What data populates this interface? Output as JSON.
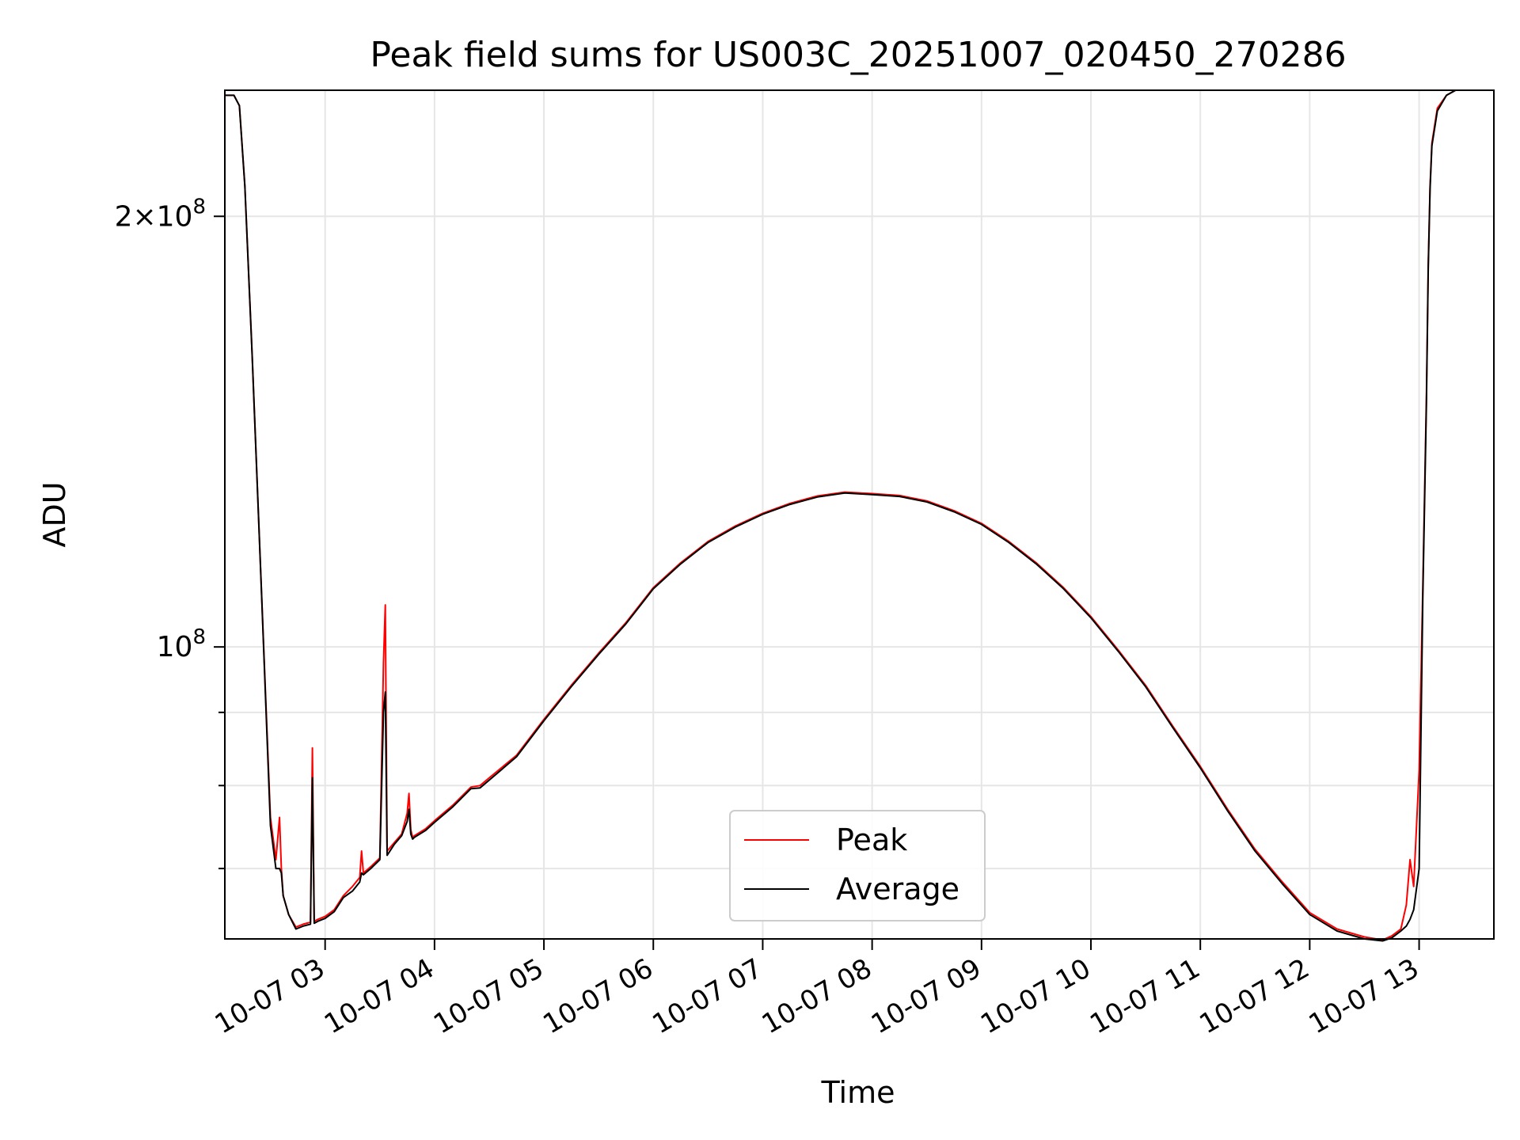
{
  "chart_data": {
    "type": "line",
    "title": "Peak field sums for US003C_20251007_020450_270286",
    "xlabel": "Time",
    "ylabel": "ADU",
    "y_scale": "log",
    "xlim": [
      "2025-10-07T02:05",
      "2025-10-07T13:41"
    ],
    "ylim": [
      62500000,
      245000000
    ],
    "grid": true,
    "legend_position": "lower-center",
    "x_tick_labels": [
      "10-07 03",
      "10-07 04",
      "10-07 05",
      "10-07 06",
      "10-07 07",
      "10-07 08",
      "10-07 09",
      "10-07 10",
      "10-07 11",
      "10-07 12",
      "10-07 13"
    ],
    "x_tick_values": [
      "2025-10-07T03:00",
      "2025-10-07T04:00",
      "2025-10-07T05:00",
      "2025-10-07T06:00",
      "2025-10-07T07:00",
      "2025-10-07T08:00",
      "2025-10-07T09:00",
      "2025-10-07T10:00",
      "2025-10-07T11:00",
      "2025-10-07T12:00",
      "2025-10-07T13:00"
    ],
    "y_major_ticks": [
      {
        "value": 200000000,
        "label_mantissa": "2",
        "label_exponent": "8"
      },
      {
        "value": 100000000,
        "label_mantissa": "",
        "label_exponent": "8"
      }
    ],
    "y_minor_tick_values": [
      70000000,
      80000000,
      90000000
    ],
    "series": [
      {
        "name": "Peak",
        "color": "#ff0000",
        "x": [
          "2025-10-07T02:05",
          "2025-10-07T02:10",
          "2025-10-07T02:13",
          "2025-10-07T02:16",
          "2025-10-07T02:20",
          "2025-10-07T02:25",
          "2025-10-07T02:30",
          "2025-10-07T02:33",
          "2025-10-07T02:35",
          "2025-10-07T02:36",
          "2025-10-07T02:37",
          "2025-10-07T02:40",
          "2025-10-07T02:44",
          "2025-10-07T02:48",
          "2025-10-07T02:52",
          "2025-10-07T02:53",
          "2025-10-07T02:54",
          "2025-10-07T02:56",
          "2025-10-07T03:00",
          "2025-10-07T03:05",
          "2025-10-07T03:10",
          "2025-10-07T03:15",
          "2025-10-07T03:19",
          "2025-10-07T03:20",
          "2025-10-07T03:21",
          "2025-10-07T03:25",
          "2025-10-07T03:30",
          "2025-10-07T03:32",
          "2025-10-07T03:33",
          "2025-10-07T03:34",
          "2025-10-07T03:38",
          "2025-10-07T03:42",
          "2025-10-07T03:45",
          "2025-10-07T03:46",
          "2025-10-07T03:47",
          "2025-10-07T03:48",
          "2025-10-07T03:49",
          "2025-10-07T03:55",
          "2025-10-07T04:00",
          "2025-10-07T04:10",
          "2025-10-07T04:20",
          "2025-10-07T04:25",
          "2025-10-07T04:30",
          "2025-10-07T04:45",
          "2025-10-07T05:00",
          "2025-10-07T05:15",
          "2025-10-07T05:30",
          "2025-10-07T05:45",
          "2025-10-07T06:00",
          "2025-10-07T06:15",
          "2025-10-07T06:30",
          "2025-10-07T06:45",
          "2025-10-07T07:00",
          "2025-10-07T07:15",
          "2025-10-07T07:30",
          "2025-10-07T07:45",
          "2025-10-07T08:00",
          "2025-10-07T08:15",
          "2025-10-07T08:30",
          "2025-10-07T08:45",
          "2025-10-07T09:00",
          "2025-10-07T09:15",
          "2025-10-07T09:30",
          "2025-10-07T09:45",
          "2025-10-07T10:00",
          "2025-10-07T10:15",
          "2025-10-07T10:30",
          "2025-10-07T10:45",
          "2025-10-07T11:00",
          "2025-10-07T11:15",
          "2025-10-07T11:30",
          "2025-10-07T11:45",
          "2025-10-07T12:00",
          "2025-10-07T12:15",
          "2025-10-07T12:30",
          "2025-10-07T12:40",
          "2025-10-07T12:45",
          "2025-10-07T12:50",
          "2025-10-07T12:53",
          "2025-10-07T12:55",
          "2025-10-07T12:57",
          "2025-10-07T13:00",
          "2025-10-07T13:02",
          "2025-10-07T13:04",
          "2025-10-07T13:05",
          "2025-10-07T13:06",
          "2025-10-07T13:07",
          "2025-10-07T13:10",
          "2025-10-07T13:15",
          "2025-10-07T13:20",
          "2025-10-07T13:25",
          "2025-10-07T13:30",
          "2025-10-07T13:35",
          "2025-10-07T13:41"
        ],
        "y": [
          243000000,
          243000000,
          239000000,
          210000000,
          160000000,
          110000000,
          76000000,
          71000000,
          76000000,
          70000000,
          67000000,
          65000000,
          63700000,
          64000000,
          64200000,
          85000000,
          64300000,
          64500000,
          64800000,
          65500000,
          67000000,
          68000000,
          69000000,
          72000000,
          69500000,
          70200000,
          71200000,
          97500000,
          107000000,
          72000000,
          73000000,
          74000000,
          76500000,
          79000000,
          74500000,
          73600000,
          73800000,
          74600000,
          75600000,
          77500000,
          79800000,
          80000000,
          81000000,
          84000000,
          89000000,
          94000000,
          99000000,
          104000000,
          110000000,
          114500000,
          118500000,
          121500000,
          124000000,
          126000000,
          127500000,
          128300000,
          128000000,
          127600000,
          126500000,
          124500000,
          122000000,
          118500000,
          114500000,
          110000000,
          105000000,
          99500000,
          94000000,
          88000000,
          82500000,
          77000000,
          72200000,
          68500000,
          65200000,
          63500000,
          62700000,
          62400000,
          62800000,
          63500000,
          66000000,
          71000000,
          68000000,
          82000000,
          110000000,
          150000000,
          185000000,
          210000000,
          225000000,
          238000000,
          243000000,
          245000000,
          245000000,
          245000000,
          245000000,
          245000000
        ]
      },
      {
        "name": "Average",
        "color": "#000000",
        "x": [
          "2025-10-07T02:05",
          "2025-10-07T02:10",
          "2025-10-07T02:13",
          "2025-10-07T02:16",
          "2025-10-07T02:20",
          "2025-10-07T02:25",
          "2025-10-07T02:30",
          "2025-10-07T02:33",
          "2025-10-07T02:35",
          "2025-10-07T02:36",
          "2025-10-07T02:37",
          "2025-10-07T02:40",
          "2025-10-07T02:44",
          "2025-10-07T02:48",
          "2025-10-07T02:52",
          "2025-10-07T02:53",
          "2025-10-07T02:54",
          "2025-10-07T02:56",
          "2025-10-07T03:00",
          "2025-10-07T03:05",
          "2025-10-07T03:10",
          "2025-10-07T03:15",
          "2025-10-07T03:19",
          "2025-10-07T03:20",
          "2025-10-07T03:21",
          "2025-10-07T03:25",
          "2025-10-07T03:30",
          "2025-10-07T03:32",
          "2025-10-07T03:33",
          "2025-10-07T03:34",
          "2025-10-07T03:38",
          "2025-10-07T03:42",
          "2025-10-07T03:45",
          "2025-10-07T03:46",
          "2025-10-07T03:47",
          "2025-10-07T03:48",
          "2025-10-07T03:49",
          "2025-10-07T03:55",
          "2025-10-07T04:00",
          "2025-10-07T04:10",
          "2025-10-07T04:20",
          "2025-10-07T04:25",
          "2025-10-07T04:30",
          "2025-10-07T04:45",
          "2025-10-07T05:00",
          "2025-10-07T05:15",
          "2025-10-07T05:30",
          "2025-10-07T05:45",
          "2025-10-07T06:00",
          "2025-10-07T06:15",
          "2025-10-07T06:30",
          "2025-10-07T06:45",
          "2025-10-07T07:00",
          "2025-10-07T07:15",
          "2025-10-07T07:30",
          "2025-10-07T07:45",
          "2025-10-07T08:00",
          "2025-10-07T08:15",
          "2025-10-07T08:30",
          "2025-10-07T08:45",
          "2025-10-07T09:00",
          "2025-10-07T09:15",
          "2025-10-07T09:30",
          "2025-10-07T09:45",
          "2025-10-07T10:00",
          "2025-10-07T10:15",
          "2025-10-07T10:30",
          "2025-10-07T10:45",
          "2025-10-07T11:00",
          "2025-10-07T11:15",
          "2025-10-07T11:30",
          "2025-10-07T11:45",
          "2025-10-07T12:00",
          "2025-10-07T12:15",
          "2025-10-07T12:30",
          "2025-10-07T12:40",
          "2025-10-07T12:45",
          "2025-10-07T12:50",
          "2025-10-07T12:53",
          "2025-10-07T12:55",
          "2025-10-07T12:57",
          "2025-10-07T13:00",
          "2025-10-07T13:02",
          "2025-10-07T13:04",
          "2025-10-07T13:05",
          "2025-10-07T13:06",
          "2025-10-07T13:07",
          "2025-10-07T13:10",
          "2025-10-07T13:15",
          "2025-10-07T13:20",
          "2025-10-07T13:25",
          "2025-10-07T13:30",
          "2025-10-07T13:35",
          "2025-10-07T13:41"
        ],
        "y": [
          243000000,
          243000000,
          239000000,
          210000000,
          160000000,
          110000000,
          75000000,
          70000000,
          70000000,
          69500000,
          67000000,
          65000000,
          63500000,
          63800000,
          64000000,
          81000000,
          64100000,
          64300000,
          64600000,
          65300000,
          66800000,
          67500000,
          68500000,
          69500000,
          69300000,
          70000000,
          71000000,
          90000000,
          93000000,
          71500000,
          72800000,
          73800000,
          75500000,
          77000000,
          74000000,
          73400000,
          73600000,
          74400000,
          75400000,
          77300000,
          79600000,
          79700000,
          80700000,
          83800000,
          88800000,
          93800000,
          98800000,
          103800000,
          109800000,
          114300000,
          118300000,
          121300000,
          123800000,
          125800000,
          127300000,
          128100000,
          127800000,
          127400000,
          126300000,
          124300000,
          121800000,
          118300000,
          114300000,
          109800000,
          104800000,
          99300000,
          93800000,
          87800000,
          82300000,
          76800000,
          72000000,
          68300000,
          65000000,
          63300000,
          62500000,
          62300000,
          62600000,
          63300000,
          63800000,
          64500000,
          65500000,
          70000000,
          108000000,
          148000000,
          184000000,
          209000000,
          224000000,
          237000000,
          243000000,
          245000000,
          245000000,
          245000000,
          245000000,
          245000000
        ]
      }
    ]
  }
}
